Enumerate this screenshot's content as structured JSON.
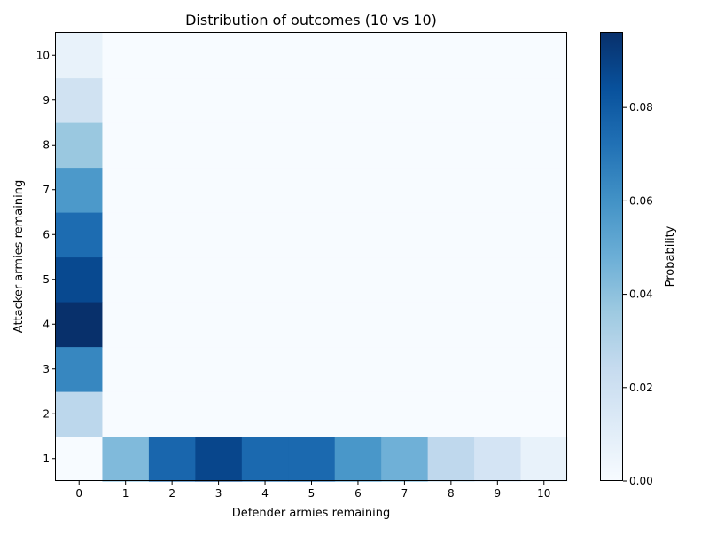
{
  "chart_data": {
    "type": "heatmap",
    "title": "Distribution of outcomes (10 vs 10)",
    "xlabel": "Defender armies remaining",
    "ylabel": "Attacker armies remaining",
    "x_categories": [
      0,
      1,
      2,
      3,
      4,
      5,
      6,
      7,
      8,
      9,
      10
    ],
    "y_categories": [
      1,
      2,
      3,
      4,
      5,
      6,
      7,
      8,
      9,
      10
    ],
    "values_by_row": {
      "1": [
        0.0,
        0.043,
        0.076,
        0.088,
        0.075,
        0.075,
        0.058,
        0.047,
        0.026,
        0.017,
        0.007
      ],
      "2": [
        0.027,
        0,
        0,
        0,
        0,
        0,
        0,
        0,
        0,
        0,
        0
      ],
      "3": [
        0.064,
        0,
        0,
        0,
        0,
        0,
        0,
        0,
        0,
        0,
        0
      ],
      "4": [
        0.096,
        0,
        0,
        0,
        0,
        0,
        0,
        0,
        0,
        0,
        0
      ],
      "5": [
        0.087,
        0,
        0,
        0,
        0,
        0,
        0,
        0,
        0,
        0,
        0
      ],
      "6": [
        0.074,
        0,
        0,
        0,
        0,
        0,
        0,
        0,
        0,
        0,
        0
      ],
      "7": [
        0.057,
        0,
        0,
        0,
        0,
        0,
        0,
        0,
        0,
        0,
        0
      ],
      "8": [
        0.037,
        0,
        0,
        0,
        0,
        0,
        0,
        0,
        0,
        0,
        0
      ],
      "9": [
        0.019,
        0,
        0,
        0,
        0,
        0,
        0,
        0,
        0,
        0,
        0
      ],
      "10": [
        0.007,
        0,
        0,
        0,
        0,
        0,
        0,
        0,
        0,
        0,
        0
      ]
    },
    "colorbar": {
      "label": "Probability",
      "range": [
        0.0,
        0.096
      ],
      "ticks": [
        "0.00",
        "0.02",
        "0.04",
        "0.06",
        "0.08"
      ],
      "colormap": "Blues",
      "color_stops": [
        "#f7fbff",
        "#deebf7",
        "#c6dbef",
        "#9ecae1",
        "#6baed6",
        "#4292c6",
        "#2171b5",
        "#08519c",
        "#08306b"
      ]
    },
    "grid": false
  }
}
